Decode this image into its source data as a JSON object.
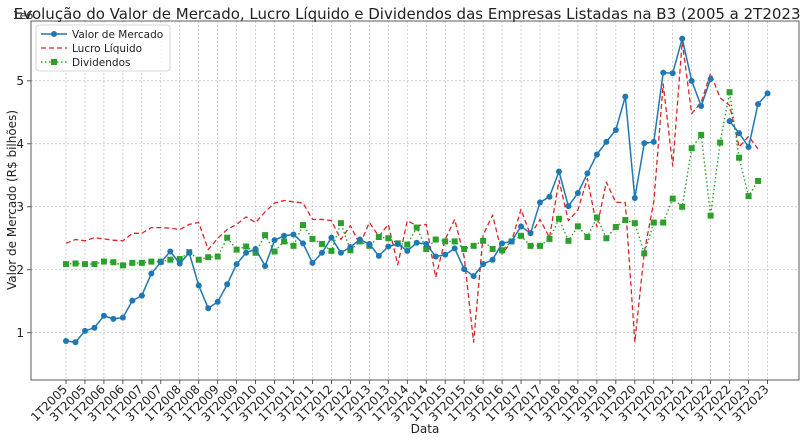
{
  "chart_data": {
    "type": "line",
    "title": "Evolução do Valor de Mercado, Lucro Líquido e Dividendos das Empresas Listadas na B3 (2005 a 2T2023)",
    "xlabel": "Data",
    "ylabel": "Valor de Mercado (R$ bilhões)",
    "y_offset_label": "1e6",
    "ylim": [
      0.25,
      5.95
    ],
    "yticks": [
      1,
      2,
      3,
      4,
      5
    ],
    "grid": true,
    "legend_position": "top-left",
    "x": [
      "1T2005",
      "2T2005",
      "3T2005",
      "4T2005",
      "1T2006",
      "2T2006",
      "3T2006",
      "4T2006",
      "1T2007",
      "2T2007",
      "3T2007",
      "4T2007",
      "1T2008",
      "2T2008",
      "3T2008",
      "4T2008",
      "1T2009",
      "2T2009",
      "3T2009",
      "4T2009",
      "1T2010",
      "2T2010",
      "3T2010",
      "4T2010",
      "1T2011",
      "2T2011",
      "3T2011",
      "4T2011",
      "1T2012",
      "2T2012",
      "3T2012",
      "4T2012",
      "1T2013",
      "2T2013",
      "3T2013",
      "4T2013",
      "1T2014",
      "2T2014",
      "3T2014",
      "4T2014",
      "1T2015",
      "2T2015",
      "3T2015",
      "4T2015",
      "1T2016",
      "2T2016",
      "3T2016",
      "4T2016",
      "1T2017",
      "2T2017",
      "3T2017",
      "4T2017",
      "1T2018",
      "2T2018",
      "3T2018",
      "4T2018",
      "1T2019",
      "2T2019",
      "3T2019",
      "4T2019",
      "1T2020",
      "2T2020",
      "3T2020",
      "4T2020",
      "1T2021",
      "2T2021",
      "3T2021",
      "4T2021",
      "1T2022",
      "2T2022",
      "3T2022",
      "4T2022",
      "1T2023",
      "2T2023",
      "3T2023"
    ],
    "x_tick_labels": [
      "1T2005",
      "3T2005",
      "1T2006",
      "3T2006",
      "1T2007",
      "3T2007",
      "1T2008",
      "3T2008",
      "1T2009",
      "3T2009",
      "1T2010",
      "3T2010",
      "1T2011",
      "3T2011",
      "1T2012",
      "3T2012",
      "1T2013",
      "3T2013",
      "1T2014",
      "3T2014",
      "1T2015",
      "3T2015",
      "1T2016",
      "3T2016",
      "1T2017",
      "3T2017",
      "1T2018",
      "3T2018",
      "1T2019",
      "3T2019",
      "1T2020",
      "3T2020",
      "1T2021",
      "3T2021",
      "1T2022",
      "3T2022",
      "1T2023",
      "3T2023"
    ],
    "series": [
      {
        "name": "Valor de Mercado",
        "color": "#1f77b4",
        "style": "solid-circle",
        "values": [
          0.87,
          0.85,
          1.03,
          1.08,
          1.27,
          1.22,
          1.24,
          1.51,
          1.59,
          1.94,
          2.12,
          2.29,
          2.1,
          2.27,
          1.75,
          1.39,
          1.49,
          1.77,
          2.09,
          2.27,
          2.33,
          2.06,
          2.47,
          2.54,
          2.56,
          2.42,
          2.11,
          2.27,
          2.51,
          2.27,
          2.36,
          2.48,
          2.41,
          2.22,
          2.37,
          2.41,
          2.3,
          2.43,
          2.41,
          2.21,
          2.24,
          2.34,
          2.01,
          1.9,
          2.09,
          2.16,
          2.42,
          2.45,
          2.69,
          2.58,
          3.07,
          3.16,
          3.56,
          3.01,
          3.22,
          3.53,
          3.83,
          4.03,
          4.22,
          4.75,
          3.14,
          4.01,
          4.03,
          5.13,
          5.12,
          5.67,
          5.0,
          4.6,
          5.03,
          null,
          4.36,
          4.17,
          3.95,
          4.63,
          4.8
        ]
      },
      {
        "name": "Lucro Líquido",
        "color": "#d62728",
        "style": "dashed",
        "values": [
          2.42,
          2.48,
          2.46,
          2.51,
          2.49,
          2.47,
          2.46,
          2.58,
          2.58,
          2.67,
          2.67,
          2.66,
          2.64,
          2.72,
          2.75,
          2.32,
          2.5,
          2.64,
          2.72,
          2.84,
          2.75,
          2.92,
          3.06,
          3.1,
          3.08,
          3.06,
          2.8,
          2.8,
          2.78,
          2.48,
          2.7,
          2.4,
          2.75,
          2.53,
          2.72,
          2.08,
          2.78,
          2.7,
          2.72,
          1.88,
          2.48,
          2.8,
          2.2,
          0.85,
          2.55,
          2.87,
          2.25,
          2.45,
          2.96,
          2.55,
          2.8,
          2.51,
          3.42,
          2.78,
          2.95,
          3.45,
          2.68,
          3.39,
          3.07,
          3.07,
          0.85,
          2.28,
          3.08,
          4.95,
          3.65,
          5.62,
          4.48,
          4.66,
          5.12,
          4.73,
          4.61,
          3.95,
          4.12,
          3.92,
          null
        ]
      },
      {
        "name": "Dividendos",
        "color": "#2ca02c",
        "style": "dotted-square",
        "values": [
          2.09,
          2.1,
          2.09,
          2.09,
          2.13,
          2.12,
          2.07,
          2.11,
          2.11,
          2.13,
          2.13,
          2.16,
          2.17,
          2.28,
          2.16,
          2.2,
          2.21,
          2.51,
          2.32,
          2.37,
          2.27,
          2.55,
          2.29,
          2.45,
          2.38,
          2.71,
          2.49,
          2.41,
          2.3,
          2.74,
          2.31,
          2.45,
          2.38,
          2.52,
          2.5,
          2.42,
          2.4,
          2.67,
          2.33,
          2.48,
          2.45,
          2.45,
          2.33,
          2.38,
          2.46,
          2.33,
          2.31,
          2.45,
          2.54,
          2.38,
          2.38,
          2.49,
          2.81,
          2.46,
          2.69,
          2.52,
          2.83,
          2.5,
          2.68,
          2.79,
          2.74,
          2.26,
          2.75,
          2.75,
          3.13,
          3.0,
          3.93,
          4.14,
          2.86,
          4.02,
          4.82,
          3.78,
          3.17,
          3.41,
          null
        ]
      }
    ]
  }
}
